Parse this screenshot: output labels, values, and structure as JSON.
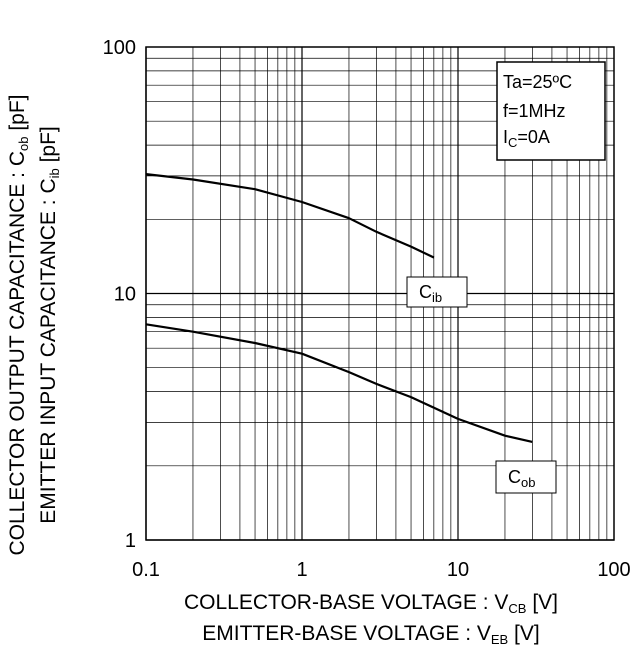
{
  "chart_data": {
    "type": "line",
    "x_scale": "log",
    "y_scale": "log",
    "xlim": [
      0.1,
      100
    ],
    "ylim": [
      1,
      100
    ],
    "grid": true,
    "x_ticks": [
      "0.1",
      "1",
      "10",
      "100"
    ],
    "y_ticks": [
      "1",
      "10",
      "100"
    ],
    "xlabel_lines": [
      {
        "main": "COLLECTOR-BASE VOLTAGE : V",
        "sub": "CB",
        "tail": " [V]"
      },
      {
        "main": "EMITTER-BASE VOLTAGE : V",
        "sub": "EB",
        "tail": " [V]"
      }
    ],
    "ylabel_lines": [
      {
        "main": "COLLECTOR OUTPUT CAPACITANCE : C",
        "sub": "ob",
        "tail": " [pF]"
      },
      {
        "main": "EMITTER INPUT CAPACITANCE : C",
        "sub": "ib",
        "tail": " [pF]"
      }
    ],
    "conditions": [
      {
        "main": "Ta=25ºC",
        "sub": "",
        "tail": ""
      },
      {
        "main": "f=1MHz",
        "sub": "",
        "tail": ""
      },
      {
        "main": "I",
        "sub": "C",
        "tail": "=0A"
      }
    ],
    "series": [
      {
        "name": "Cib",
        "label_main": "C",
        "label_sub": "ib",
        "x": [
          0.1,
          0.2,
          0.5,
          1,
          2,
          3,
          5,
          7
        ],
        "y": [
          30.5,
          29,
          26.5,
          23.5,
          20.2,
          17.8,
          15.5,
          14
        ]
      },
      {
        "name": "Cob",
        "label_main": "C",
        "label_sub": "ob",
        "x": [
          0.1,
          0.2,
          0.5,
          1,
          2,
          3,
          5,
          10,
          20,
          30
        ],
        "y": [
          7.5,
          7,
          6.3,
          5.7,
          4.8,
          4.3,
          3.8,
          3.1,
          2.65,
          2.5
        ]
      }
    ]
  }
}
